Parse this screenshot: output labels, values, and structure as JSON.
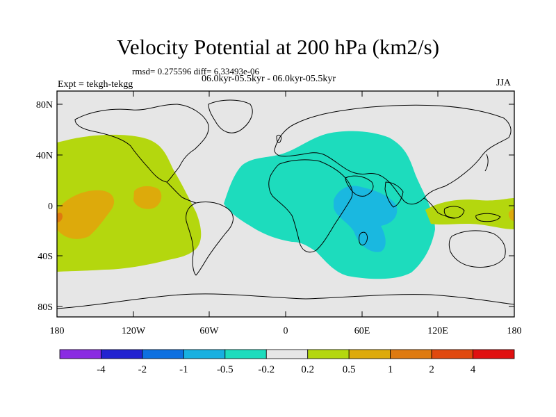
{
  "title": "Velocity Potential at 200 hPa (km2/s)",
  "stats_line": "rmsd= 0.275596 diff= 6.33493e-06",
  "experiment": "Expt = tekgh-tekgg",
  "period": "06.0kyr-05.5kyr - 06.0kyr-05.5kyr",
  "season": "JJA",
  "colors": {
    "ocean": "#e6e6e6",
    "coast": "#000000",
    "level_plus_0_2": "#b4d70e",
    "level_plus_0_5": "#ddaa0b",
    "level_plus_1": "#de7a10",
    "level_minus_0_2": "#1ddcbd",
    "level_minus_0_5": "#1ab8e0",
    "level_minus_1": "#0d8fe0"
  },
  "axes": {
    "y_ticks": [
      "80N",
      "40N",
      "0",
      "40S",
      "80S"
    ],
    "x_ticks": [
      "180",
      "120W",
      "60W",
      "0",
      "60E",
      "120E",
      "180"
    ]
  },
  "colorbar": {
    "colors": [
      "#8a2be2",
      "#2323d0",
      "#0d70e0",
      "#18b0e0",
      "#1ddcbd",
      "#e6e6e6",
      "#b4d70e",
      "#ddaa0b",
      "#de7a10",
      "#e0490e",
      "#e01010"
    ],
    "labels": [
      "-4",
      "-2",
      "-1",
      "-0.5",
      "-0.2",
      "0.2",
      "0.5",
      "1",
      "2",
      "4"
    ]
  }
}
